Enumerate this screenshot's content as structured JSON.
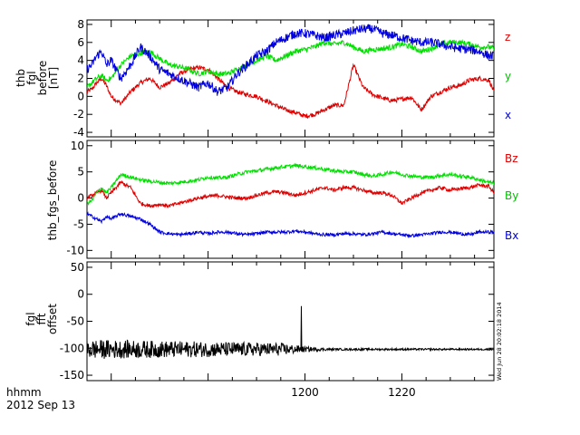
{
  "time_axis": {
    "label_line1": "hhmm",
    "label_line2": "2012 Sep 13",
    "range": [
      1155.0,
      1239.0
    ],
    "ticks": [
      1200,
      1220
    ]
  },
  "timestamp": "Wed Jun 28 20:02:18 2014",
  "colors": {
    "red": "#e00000",
    "green": "#00e000",
    "blue": "#0000e0",
    "black": "#000000"
  },
  "chart_data": [
    {
      "type": "line",
      "title": "",
      "ylabel_lines": [
        "thb",
        "fgl",
        "before",
        "[nT]"
      ],
      "ylim": [
        -4.5,
        8.5
      ],
      "yticks": [
        -4,
        -2,
        0,
        2,
        4,
        6,
        8
      ],
      "legend": [
        "z",
        "y",
        "x"
      ],
      "x": [
        1155,
        1156,
        1157,
        1158,
        1159,
        1160,
        1162,
        1164,
        1166,
        1168,
        1170,
        1172,
        1174,
        1176,
        1178,
        1180,
        1182,
        1184,
        1186,
        1188,
        1190,
        1192,
        1194,
        1196,
        1198,
        1200,
        1202,
        1204,
        1206,
        1208,
        1210,
        1212,
        1214,
        1216,
        1218,
        1220,
        1222,
        1224,
        1226,
        1228,
        1230,
        1232,
        1234,
        1236,
        1238,
        1239
      ],
      "series": [
        {
          "name": "z",
          "color_key": "red",
          "noise": 0.25,
          "values": [
            0.5,
            0.8,
            1.5,
            2.0,
            1.2,
            0.0,
            -0.8,
            0.5,
            1.5,
            2.0,
            1.0,
            1.5,
            2.5,
            3.0,
            3.2,
            3.0,
            2.0,
            1.0,
            0.5,
            0.2,
            0.0,
            -0.5,
            -1.0,
            -1.5,
            -1.8,
            -2.2,
            -2.0,
            -1.5,
            -1.0,
            -1.0,
            3.5,
            1.0,
            0.2,
            -0.2,
            -0.5,
            -0.3,
            -0.1,
            -1.5,
            0.0,
            0.5,
            1.0,
            1.2,
            1.8,
            2.0,
            1.8,
            0.5
          ]
        },
        {
          "name": "y",
          "color_key": "green",
          "noise": 0.3,
          "values": [
            1.0,
            1.5,
            2.0,
            2.3,
            1.8,
            2.0,
            3.5,
            4.5,
            4.8,
            5.0,
            4.2,
            3.5,
            3.3,
            3.0,
            2.5,
            2.8,
            2.5,
            2.5,
            3.0,
            3.5,
            4.0,
            4.5,
            4.0,
            4.5,
            5.0,
            5.2,
            5.5,
            6.0,
            5.8,
            6.0,
            5.5,
            5.0,
            5.2,
            5.3,
            5.5,
            5.8,
            5.5,
            5.0,
            5.3,
            5.8,
            6.0,
            6.0,
            5.8,
            5.5,
            5.5,
            5.3
          ]
        },
        {
          "name": "x",
          "color_key": "blue",
          "noise": 0.5,
          "values": [
            3.0,
            3.5,
            4.5,
            5.0,
            3.5,
            4.0,
            2.0,
            3.5,
            5.5,
            4.5,
            3.0,
            2.5,
            2.0,
            1.5,
            1.0,
            1.5,
            0.5,
            1.0,
            2.5,
            3.5,
            4.5,
            5.0,
            6.0,
            6.5,
            7.0,
            7.0,
            6.8,
            6.5,
            6.8,
            7.0,
            7.3,
            7.5,
            7.5,
            7.0,
            6.8,
            6.5,
            6.2,
            6.0,
            6.0,
            5.8,
            5.5,
            5.3,
            5.2,
            5.0,
            4.5,
            4.5
          ]
        }
      ]
    },
    {
      "type": "line",
      "title": "",
      "ylabel_lines": [
        "thb_fgs_before"
      ],
      "ylim": [
        -11.5,
        11.0
      ],
      "yticks": [
        -10,
        -5,
        0,
        5,
        10
      ],
      "legend": [
        "Bz",
        "By",
        "Bx"
      ],
      "x": [
        1155,
        1156,
        1157,
        1158,
        1159,
        1160,
        1162,
        1164,
        1166,
        1168,
        1170,
        1172,
        1174,
        1176,
        1178,
        1180,
        1182,
        1184,
        1186,
        1188,
        1190,
        1192,
        1194,
        1196,
        1198,
        1200,
        1202,
        1204,
        1206,
        1208,
        1210,
        1212,
        1214,
        1216,
        1218,
        1220,
        1222,
        1224,
        1226,
        1228,
        1230,
        1232,
        1234,
        1236,
        1238,
        1239
      ],
      "series": [
        {
          "name": "Bz",
          "color_key": "red",
          "noise": 0.35,
          "values": [
            0.0,
            0.5,
            1.0,
            1.5,
            0.0,
            1.0,
            3.0,
            2.0,
            -1.0,
            -1.5,
            -1.2,
            -1.5,
            -1.0,
            -0.5,
            0.0,
            0.3,
            0.5,
            0.2,
            0.0,
            0.0,
            0.5,
            1.0,
            1.2,
            1.0,
            0.5,
            1.0,
            1.5,
            2.0,
            1.5,
            2.0,
            2.0,
            1.5,
            1.0,
            1.0,
            0.5,
            -1.0,
            0.0,
            1.0,
            1.5,
            2.0,
            1.5,
            1.8,
            2.0,
            2.5,
            2.2,
            1.0
          ]
        },
        {
          "name": "By",
          "color_key": "green",
          "noise": 0.35,
          "values": [
            -1.0,
            -0.5,
            1.0,
            2.0,
            1.0,
            2.0,
            4.5,
            4.0,
            3.5,
            3.2,
            3.0,
            2.8,
            3.0,
            3.2,
            3.5,
            4.0,
            3.8,
            4.0,
            4.5,
            5.0,
            5.2,
            5.5,
            5.8,
            6.0,
            6.2,
            6.0,
            5.8,
            5.5,
            5.2,
            5.0,
            5.0,
            4.5,
            4.2,
            4.5,
            5.0,
            4.5,
            4.2,
            4.0,
            4.0,
            4.3,
            4.5,
            4.2,
            4.0,
            3.5,
            3.0,
            2.8
          ]
        },
        {
          "name": "Bx",
          "color_key": "blue",
          "noise": 0.3,
          "values": [
            -3.0,
            -3.5,
            -4.0,
            -4.5,
            -3.5,
            -4.0,
            -3.0,
            -3.5,
            -4.0,
            -5.0,
            -6.5,
            -6.8,
            -7.0,
            -6.8,
            -6.5,
            -6.8,
            -6.5,
            -6.5,
            -6.8,
            -7.0,
            -6.8,
            -6.5,
            -6.5,
            -6.5,
            -6.3,
            -6.5,
            -6.8,
            -7.0,
            -7.0,
            -6.8,
            -6.8,
            -7.0,
            -6.8,
            -6.5,
            -6.8,
            -7.0,
            -7.2,
            -7.0,
            -6.8,
            -6.5,
            -6.5,
            -6.8,
            -7.0,
            -6.5,
            -6.5,
            -6.5
          ]
        }
      ]
    },
    {
      "type": "line",
      "title": "",
      "ylabel_lines": [
        "fgl",
        "fft",
        "offset"
      ],
      "ylim": [
        -160.0,
        60.0
      ],
      "yticks": [
        -150,
        -100,
        -50,
        0,
        50
      ],
      "legend": [],
      "baseline": -102,
      "spike": {
        "x": 1199.2,
        "y": -22
      },
      "x": [
        1155,
        1195,
        1200,
        1205,
        1239
      ],
      "series": [
        {
          "name": "offset",
          "color_key": "black",
          "noise_env": [
            18,
            12,
            5,
            2,
            1.5
          ],
          "values": [
            -102,
            -102,
            -102,
            -102,
            -102
          ]
        }
      ]
    }
  ]
}
